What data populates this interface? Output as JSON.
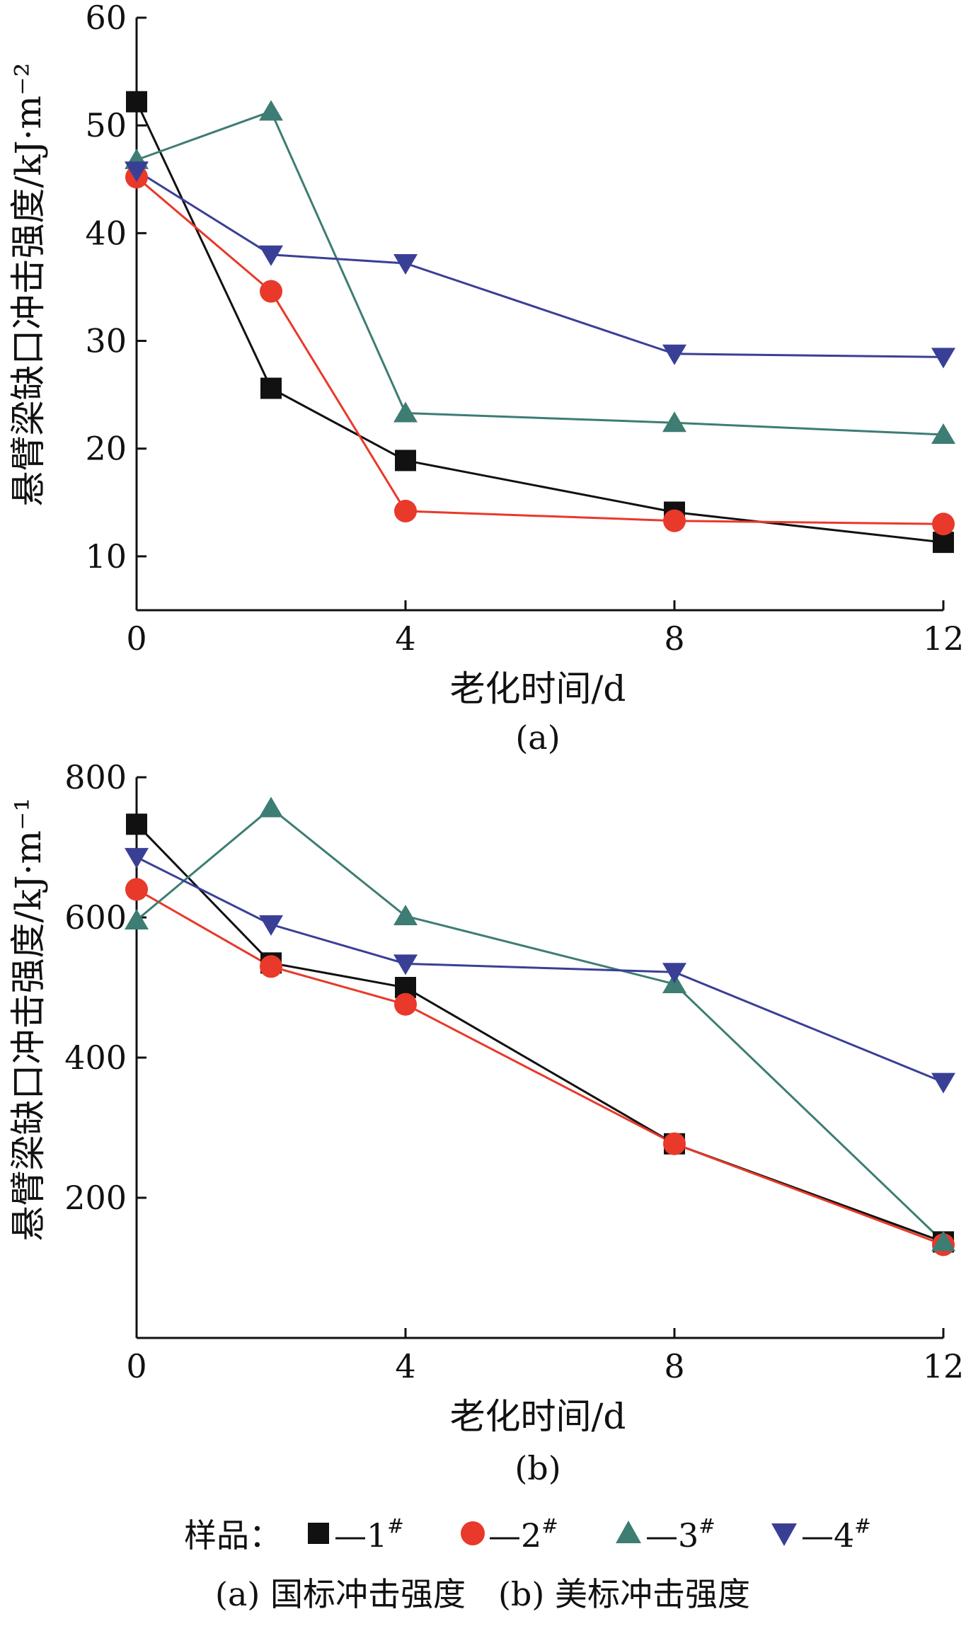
{
  "chart_data": [
    {
      "type": "line",
      "panel_label": "(a)",
      "xlabel": "老化时间/d",
      "ylabel": "悬臂梁缺口冲击强度/kJ·m⁻²",
      "xlim": [
        0,
        12
      ],
      "ylim": [
        5,
        60
      ],
      "x_ticks": [
        0,
        4,
        8,
        12
      ],
      "y_ticks": [
        10,
        20,
        30,
        40,
        50,
        60
      ],
      "x": [
        0,
        2,
        4,
        8,
        12
      ],
      "series": [
        {
          "name": "1#",
          "marker": "square",
          "color": "#111111",
          "values": [
            52.2,
            25.6,
            18.9,
            14.1,
            11.3
          ]
        },
        {
          "name": "2#",
          "marker": "circle",
          "color": "#e8392a",
          "values": [
            45.2,
            34.6,
            14.2,
            13.3,
            13.0
          ]
        },
        {
          "name": "3#",
          "marker": "triangle-up",
          "color": "#3d7d73",
          "values": [
            46.8,
            51.3,
            23.3,
            22.4,
            21.3
          ]
        },
        {
          "name": "4#",
          "marker": "triangle-down",
          "color": "#3a3f96",
          "values": [
            45.8,
            38.0,
            37.2,
            28.8,
            28.5
          ]
        }
      ]
    },
    {
      "type": "line",
      "panel_label": "(b)",
      "xlabel": "老化时间/d",
      "ylabel": "悬臂梁缺口冲击强度/kJ·m⁻¹",
      "xlim": [
        0,
        12
      ],
      "ylim": [
        0,
        800
      ],
      "x_ticks": [
        0,
        4,
        8,
        12
      ],
      "y_ticks": [
        200,
        400,
        600,
        800
      ],
      "x": [
        0,
        2,
        4,
        8,
        12
      ],
      "series": [
        {
          "name": "1#",
          "marker": "square",
          "color": "#111111",
          "values": [
            733,
            535,
            500,
            277,
            137
          ]
        },
        {
          "name": "2#",
          "marker": "circle",
          "color": "#e8392a",
          "values": [
            640,
            530,
            476,
            277,
            133
          ]
        },
        {
          "name": "3#",
          "marker": "triangle-up",
          "color": "#3d7d73",
          "values": [
            596,
            756,
            602,
            505,
            137
          ]
        },
        {
          "name": "4#",
          "marker": "triangle-down",
          "color": "#3a3f96",
          "values": [
            686,
            590,
            534,
            522,
            365
          ]
        }
      ]
    }
  ],
  "legend": {
    "prefix": "样品：",
    "dash": "—",
    "items": [
      {
        "label": "1",
        "sup": "#",
        "marker": "square",
        "color": "#111111"
      },
      {
        "label": "2",
        "sup": "#",
        "marker": "circle",
        "color": "#e8392a"
      },
      {
        "label": "3",
        "sup": "#",
        "marker": "triangle-up",
        "color": "#3d7d73"
      },
      {
        "label": "4",
        "sup": "#",
        "marker": "triangle-down",
        "color": "#3a3f96"
      }
    ]
  },
  "caption": "(a) 国标冲击强度　(b) 美标冲击强度"
}
